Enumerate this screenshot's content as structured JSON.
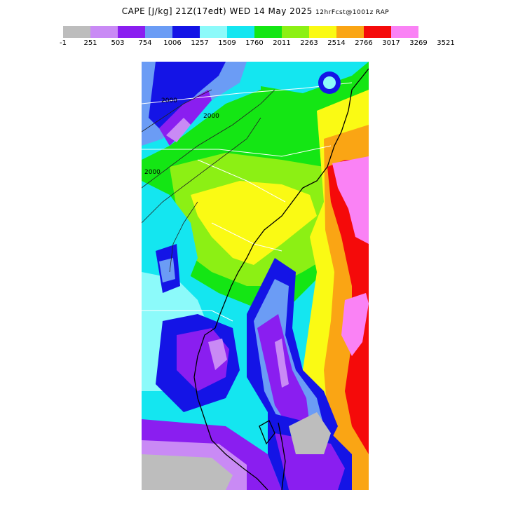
{
  "title": {
    "main": "CAPE [J/kg] 21Z(17edt) WED 14 May 2025",
    "sub": "12hrFcst@1001z RAP"
  },
  "legend": {
    "colors": [
      "#bdbdbd",
      "#c98af5",
      "#8a1ef0",
      "#6b9cf5",
      "#1414e6",
      "#8cfafa",
      "#14e6f0",
      "#14e614",
      "#8cf014",
      "#fafa14",
      "#faa514",
      "#f50a0a",
      "#fa82f5"
    ],
    "ticks": [
      "-1",
      "251",
      "503",
      "754",
      "1006",
      "1257",
      "1509",
      "1760",
      "2011",
      "2263",
      "2514",
      "2766",
      "3017",
      "3269",
      "3521"
    ]
  },
  "map": {
    "contour_labels": [
      "2000",
      "2000",
      "2000"
    ]
  }
}
